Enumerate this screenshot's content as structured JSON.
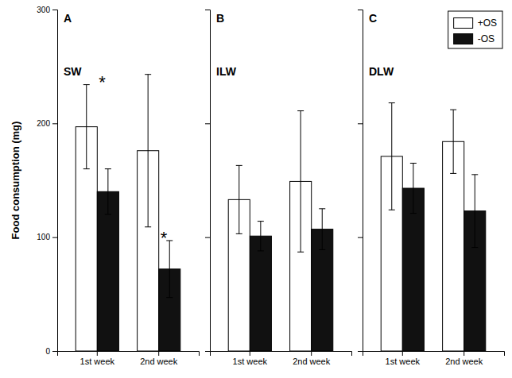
{
  "chart_data": [
    {
      "type": "bar",
      "title": "A",
      "subtitle": "SW",
      "categories": [
        "1st week",
        "2nd week"
      ],
      "series": [
        {
          "name": "+OS",
          "color": "white",
          "values": [
            197,
            176
          ],
          "errors": [
            37,
            67
          ]
        },
        {
          "name": "-OS",
          "color": "#111111",
          "values": [
            140,
            72
          ],
          "errors": [
            20,
            25
          ]
        }
      ],
      "ylabel": "Food consumption (mg)",
      "ylim": [
        0,
        300
      ],
      "yticks": [
        0,
        100,
        200,
        300
      ],
      "annotations": [
        {
          "text": "*",
          "x": "1st week",
          "series": "+OS"
        },
        {
          "text": "*",
          "x": "2nd week",
          "series": "-OS"
        }
      ]
    },
    {
      "type": "bar",
      "title": "B",
      "subtitle": "ILW",
      "categories": [
        "1st week",
        "2nd week"
      ],
      "series": [
        {
          "name": "+OS",
          "color": "white",
          "values": [
            133,
            149
          ],
          "errors": [
            30,
            62
          ]
        },
        {
          "name": "-OS",
          "color": "#111111",
          "values": [
            101,
            107
          ],
          "errors": [
            13,
            18
          ]
        }
      ],
      "ylim": [
        0,
        300
      ],
      "yticks": [
        0,
        100,
        200,
        300
      ],
      "tick_labels": "x"
    },
    {
      "type": "bar",
      "title": "C",
      "subtitle": "DLW",
      "categories": [
        "1st week",
        "2nd week"
      ],
      "series": [
        {
          "name": "+OS",
          "color": "white",
          "values": [
            171,
            184
          ],
          "errors": [
            47,
            28
          ]
        },
        {
          "name": "-OS",
          "color": "#111111",
          "values": [
            143,
            123
          ],
          "errors": [
            22,
            32
          ]
        }
      ],
      "ylim": [
        0,
        300
      ],
      "yticks": [
        0,
        100,
        200,
        300
      ],
      "tick_labels": "x",
      "legend": "upper right"
    }
  ]
}
